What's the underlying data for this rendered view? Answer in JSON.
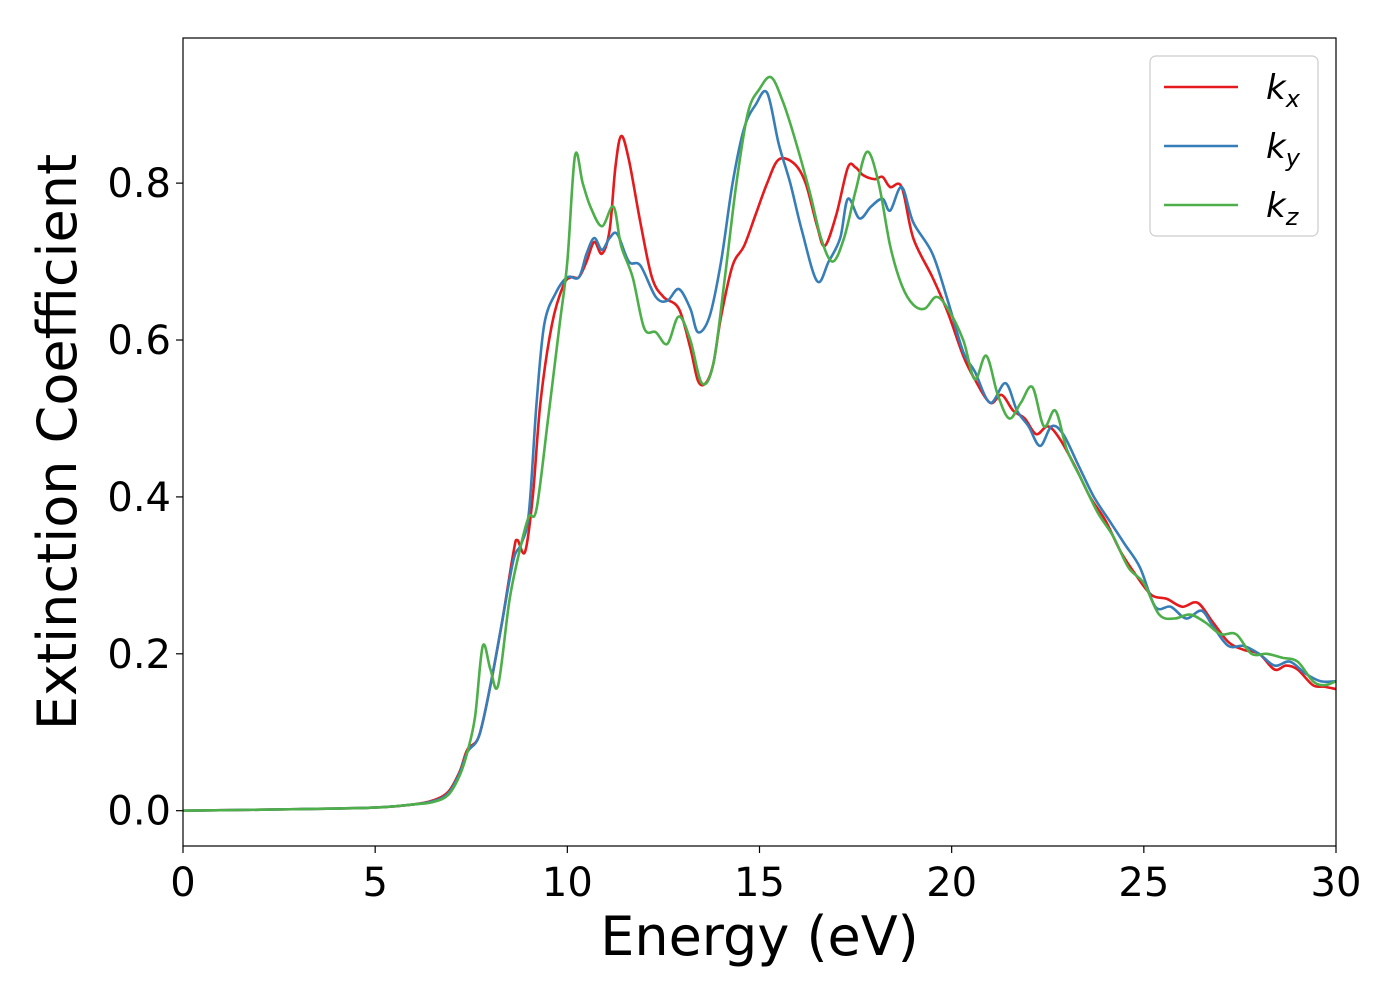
{
  "chart_data": {
    "type": "line",
    "title": "",
    "xlabel": "Energy (eV)",
    "ylabel": "Extinction Coefficient",
    "xlim": [
      0,
      30
    ],
    "ylim": [
      -0.045,
      0.985
    ],
    "xticks": [
      0,
      5,
      10,
      15,
      20,
      25,
      30
    ],
    "xtick_labels": [
      "0",
      "5",
      "10",
      "15",
      "20",
      "25",
      "30"
    ],
    "yticks": [
      0.0,
      0.2,
      0.4,
      0.6,
      0.8
    ],
    "ytick_labels": [
      "0.0",
      "0.2",
      "0.4",
      "0.6",
      "0.8"
    ],
    "grid": false,
    "legend_position": "top-right",
    "series": [
      {
        "name": "k_x",
        "label_base": "k",
        "label_sub": "x",
        "color": "#e41a1c",
        "points": [
          [
            0,
            0
          ],
          [
            3,
            0.002
          ],
          [
            5,
            0.004
          ],
          [
            6,
            0.008
          ],
          [
            6.5,
            0.013
          ],
          [
            6.9,
            0.024
          ],
          [
            7.2,
            0.05
          ],
          [
            7.4,
            0.078
          ],
          [
            7.7,
            0.095
          ],
          [
            8.0,
            0.16
          ],
          [
            8.3,
            0.24
          ],
          [
            8.6,
            0.33
          ],
          [
            8.7,
            0.345
          ],
          [
            8.9,
            0.33
          ],
          [
            9.1,
            0.4
          ],
          [
            9.3,
            0.52
          ],
          [
            9.6,
            0.62
          ],
          [
            9.9,
            0.67
          ],
          [
            10.1,
            0.68
          ],
          [
            10.3,
            0.68
          ],
          [
            10.5,
            0.7
          ],
          [
            10.7,
            0.725
          ],
          [
            10.9,
            0.71
          ],
          [
            11.1,
            0.74
          ],
          [
            11.25,
            0.82
          ],
          [
            11.4,
            0.86
          ],
          [
            11.6,
            0.83
          ],
          [
            11.9,
            0.75
          ],
          [
            12.2,
            0.68
          ],
          [
            12.5,
            0.655
          ],
          [
            12.9,
            0.64
          ],
          [
            13.2,
            0.59
          ],
          [
            13.4,
            0.548
          ],
          [
            13.6,
            0.545
          ],
          [
            13.8,
            0.57
          ],
          [
            14.0,
            0.63
          ],
          [
            14.3,
            0.695
          ],
          [
            14.6,
            0.72
          ],
          [
            14.9,
            0.76
          ],
          [
            15.2,
            0.8
          ],
          [
            15.5,
            0.83
          ],
          [
            15.9,
            0.825
          ],
          [
            16.2,
            0.8
          ],
          [
            16.5,
            0.745
          ],
          [
            16.7,
            0.72
          ],
          [
            17.0,
            0.76
          ],
          [
            17.3,
            0.82
          ],
          [
            17.5,
            0.82
          ],
          [
            17.7,
            0.81
          ],
          [
            18.0,
            0.805
          ],
          [
            18.2,
            0.808
          ],
          [
            18.4,
            0.795
          ],
          [
            18.7,
            0.795
          ],
          [
            19.0,
            0.73
          ],
          [
            19.5,
            0.68
          ],
          [
            19.9,
            0.635
          ],
          [
            20.3,
            0.58
          ],
          [
            20.6,
            0.55
          ],
          [
            21.0,
            0.52
          ],
          [
            21.3,
            0.53
          ],
          [
            21.6,
            0.51
          ],
          [
            21.9,
            0.5
          ],
          [
            22.2,
            0.48
          ],
          [
            22.5,
            0.49
          ],
          [
            22.8,
            0.475
          ],
          [
            23.2,
            0.44
          ],
          [
            23.6,
            0.4
          ],
          [
            24.0,
            0.37
          ],
          [
            24.4,
            0.33
          ],
          [
            24.8,
            0.3
          ],
          [
            25.2,
            0.275
          ],
          [
            25.6,
            0.27
          ],
          [
            26.0,
            0.26
          ],
          [
            26.4,
            0.265
          ],
          [
            26.8,
            0.24
          ],
          [
            27.2,
            0.215
          ],
          [
            27.6,
            0.205
          ],
          [
            28.0,
            0.2
          ],
          [
            28.4,
            0.18
          ],
          [
            28.7,
            0.185
          ],
          [
            29.0,
            0.18
          ],
          [
            29.4,
            0.16
          ],
          [
            29.7,
            0.158
          ],
          [
            30,
            0.155
          ]
        ]
      },
      {
        "name": "k_y",
        "label_base": "k",
        "label_sub": "y",
        "color": "#377eb8",
        "points": [
          [
            0,
            0
          ],
          [
            3,
            0.002
          ],
          [
            5,
            0.004
          ],
          [
            6,
            0.008
          ],
          [
            6.5,
            0.012
          ],
          [
            6.9,
            0.022
          ],
          [
            7.2,
            0.048
          ],
          [
            7.4,
            0.075
          ],
          [
            7.7,
            0.095
          ],
          [
            8.0,
            0.16
          ],
          [
            8.3,
            0.24
          ],
          [
            8.6,
            0.32
          ],
          [
            8.8,
            0.34
          ],
          [
            9.0,
            0.38
          ],
          [
            9.2,
            0.52
          ],
          [
            9.4,
            0.62
          ],
          [
            9.7,
            0.66
          ],
          [
            10.0,
            0.68
          ],
          [
            10.3,
            0.68
          ],
          [
            10.5,
            0.71
          ],
          [
            10.7,
            0.73
          ],
          [
            10.9,
            0.715
          ],
          [
            11.1,
            0.73
          ],
          [
            11.3,
            0.735
          ],
          [
            11.6,
            0.7
          ],
          [
            11.9,
            0.695
          ],
          [
            12.3,
            0.655
          ],
          [
            12.6,
            0.65
          ],
          [
            12.9,
            0.665
          ],
          [
            13.2,
            0.64
          ],
          [
            13.4,
            0.61
          ],
          [
            13.7,
            0.63
          ],
          [
            14.0,
            0.7
          ],
          [
            14.3,
            0.8
          ],
          [
            14.6,
            0.87
          ],
          [
            14.9,
            0.9
          ],
          [
            15.2,
            0.915
          ],
          [
            15.5,
            0.85
          ],
          [
            15.8,
            0.8
          ],
          [
            16.1,
            0.74
          ],
          [
            16.5,
            0.675
          ],
          [
            16.8,
            0.7
          ],
          [
            17.1,
            0.73
          ],
          [
            17.3,
            0.78
          ],
          [
            17.6,
            0.755
          ],
          [
            17.9,
            0.77
          ],
          [
            18.2,
            0.78
          ],
          [
            18.4,
            0.765
          ],
          [
            18.7,
            0.795
          ],
          [
            19.0,
            0.75
          ],
          [
            19.5,
            0.71
          ],
          [
            19.9,
            0.65
          ],
          [
            20.3,
            0.585
          ],
          [
            20.6,
            0.56
          ],
          [
            21.0,
            0.52
          ],
          [
            21.4,
            0.545
          ],
          [
            21.7,
            0.51
          ],
          [
            22.0,
            0.49
          ],
          [
            22.3,
            0.465
          ],
          [
            22.6,
            0.49
          ],
          [
            22.9,
            0.48
          ],
          [
            23.3,
            0.44
          ],
          [
            23.7,
            0.4
          ],
          [
            24.1,
            0.37
          ],
          [
            24.5,
            0.34
          ],
          [
            24.9,
            0.31
          ],
          [
            25.3,
            0.26
          ],
          [
            25.7,
            0.26
          ],
          [
            26.1,
            0.245
          ],
          [
            26.5,
            0.255
          ],
          [
            26.8,
            0.235
          ],
          [
            27.2,
            0.21
          ],
          [
            27.6,
            0.21
          ],
          [
            28.0,
            0.2
          ],
          [
            28.4,
            0.185
          ],
          [
            28.8,
            0.19
          ],
          [
            29.2,
            0.175
          ],
          [
            29.6,
            0.165
          ],
          [
            30,
            0.165
          ]
        ]
      },
      {
        "name": "k_z",
        "label_base": "k",
        "label_sub": "z",
        "color": "#4daf4a",
        "points": [
          [
            0,
            0
          ],
          [
            3,
            0.002
          ],
          [
            5,
            0.004
          ],
          [
            6,
            0.008
          ],
          [
            6.5,
            0.011
          ],
          [
            6.9,
            0.02
          ],
          [
            7.2,
            0.045
          ],
          [
            7.4,
            0.075
          ],
          [
            7.6,
            0.12
          ],
          [
            7.8,
            0.21
          ],
          [
            8.0,
            0.18
          ],
          [
            8.2,
            0.16
          ],
          [
            8.5,
            0.27
          ],
          [
            8.8,
            0.34
          ],
          [
            9.0,
            0.375
          ],
          [
            9.2,
            0.385
          ],
          [
            9.5,
            0.5
          ],
          [
            9.8,
            0.62
          ],
          [
            10.0,
            0.7
          ],
          [
            10.2,
            0.835
          ],
          [
            10.4,
            0.8
          ],
          [
            10.6,
            0.77
          ],
          [
            10.9,
            0.745
          ],
          [
            11.2,
            0.77
          ],
          [
            11.4,
            0.72
          ],
          [
            11.7,
            0.68
          ],
          [
            12.0,
            0.615
          ],
          [
            12.3,
            0.61
          ],
          [
            12.6,
            0.595
          ],
          [
            12.9,
            0.63
          ],
          [
            13.2,
            0.6
          ],
          [
            13.5,
            0.545
          ],
          [
            13.8,
            0.57
          ],
          [
            14.1,
            0.68
          ],
          [
            14.4,
            0.8
          ],
          [
            14.7,
            0.89
          ],
          [
            15.0,
            0.92
          ],
          [
            15.3,
            0.935
          ],
          [
            15.6,
            0.905
          ],
          [
            15.9,
            0.86
          ],
          [
            16.3,
            0.79
          ],
          [
            16.6,
            0.73
          ],
          [
            16.9,
            0.7
          ],
          [
            17.2,
            0.73
          ],
          [
            17.5,
            0.79
          ],
          [
            17.8,
            0.84
          ],
          [
            18.1,
            0.8
          ],
          [
            18.4,
            0.72
          ],
          [
            18.7,
            0.67
          ],
          [
            19.0,
            0.645
          ],
          [
            19.3,
            0.64
          ],
          [
            19.6,
            0.655
          ],
          [
            19.9,
            0.64
          ],
          [
            20.3,
            0.6
          ],
          [
            20.6,
            0.55
          ],
          [
            20.9,
            0.58
          ],
          [
            21.2,
            0.53
          ],
          [
            21.5,
            0.5
          ],
          [
            21.8,
            0.52
          ],
          [
            22.1,
            0.54
          ],
          [
            22.4,
            0.49
          ],
          [
            22.7,
            0.51
          ],
          [
            23.0,
            0.46
          ],
          [
            23.4,
            0.42
          ],
          [
            23.8,
            0.38
          ],
          [
            24.2,
            0.35
          ],
          [
            24.6,
            0.31
          ],
          [
            25.0,
            0.29
          ],
          [
            25.4,
            0.25
          ],
          [
            25.8,
            0.245
          ],
          [
            26.2,
            0.25
          ],
          [
            26.6,
            0.24
          ],
          [
            27.0,
            0.225
          ],
          [
            27.4,
            0.225
          ],
          [
            27.8,
            0.2
          ],
          [
            28.2,
            0.2
          ],
          [
            28.6,
            0.195
          ],
          [
            29.0,
            0.19
          ],
          [
            29.4,
            0.165
          ],
          [
            29.7,
            0.16
          ],
          [
            30,
            0.165
          ]
        ]
      }
    ]
  }
}
